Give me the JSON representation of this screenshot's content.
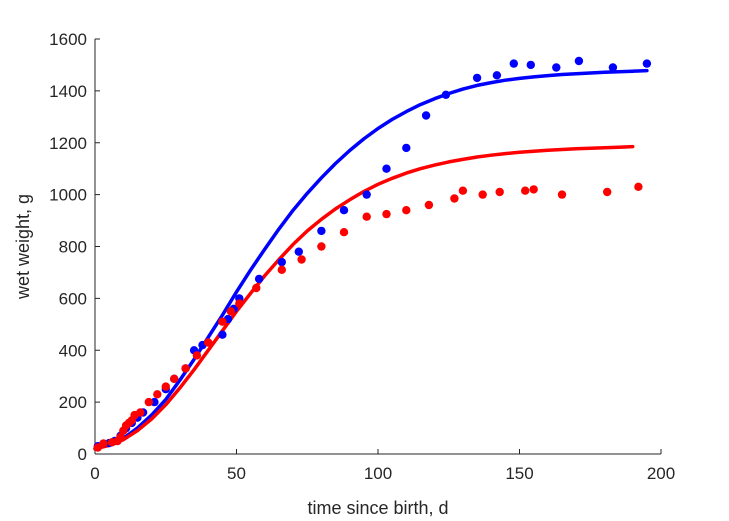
{
  "chart_data": {
    "type": "scatter",
    "title": "",
    "xlabel": "time since birth, d",
    "ylabel": "wet weight, g",
    "xlim": [
      0,
      200
    ],
    "ylim": [
      0,
      1600
    ],
    "xticks": [
      "0",
      "50",
      "100",
      "150",
      "200"
    ],
    "yticks": [
      "0",
      "200",
      "400",
      "600",
      "800",
      "1000",
      "1200",
      "1400",
      "1600"
    ],
    "grid": false,
    "legend": "none",
    "series": [
      {
        "kind": "points",
        "color": "#0000ff",
        "x": [
          1,
          3,
          5,
          7,
          9,
          11,
          13,
          15,
          17,
          21,
          25,
          28,
          32,
          35,
          38,
          45,
          47,
          49,
          51,
          58,
          66,
          72,
          80,
          88,
          96,
          103,
          110,
          117,
          124,
          135,
          142,
          148,
          154,
          163,
          171,
          183,
          195
        ],
        "y": [
          30,
          40,
          42,
          50,
          70,
          100,
          120,
          140,
          160,
          200,
          250,
          290,
          330,
          400,
          420,
          460,
          520,
          560,
          600,
          675,
          740,
          780,
          860,
          940,
          1000,
          1100,
          1180,
          1305,
          1385,
          1450,
          1460,
          1505,
          1500,
          1490,
          1515,
          1490,
          1505
        ]
      },
      {
        "kind": "points",
        "color": "#ff0000",
        "x": [
          1,
          3,
          6,
          8,
          9,
          10,
          11,
          12,
          13,
          14,
          16,
          19,
          22,
          25,
          28,
          32,
          36,
          40,
          45,
          48,
          51,
          57,
          66,
          73,
          80,
          88,
          96,
          103,
          110,
          118,
          127,
          130,
          137,
          143,
          152,
          155,
          165,
          181,
          192
        ],
        "y": [
          25,
          40,
          45,
          50,
          65,
          90,
          110,
          120,
          130,
          150,
          160,
          200,
          230,
          260,
          290,
          330,
          380,
          430,
          510,
          550,
          580,
          640,
          710,
          750,
          800,
          855,
          915,
          925,
          940,
          960,
          985,
          1015,
          1000,
          1010,
          1015,
          1020,
          1000,
          1010,
          1030
        ]
      },
      {
        "kind": "curve",
        "color": "#0000ff",
        "x": [
          0,
          5,
          10,
          15,
          20,
          25,
          30,
          35,
          40,
          45,
          50,
          55,
          60,
          65,
          70,
          75,
          80,
          85,
          90,
          95,
          100,
          105,
          110,
          115,
          120,
          125,
          130,
          135,
          140,
          145,
          150,
          155,
          160,
          165,
          170,
          175,
          180,
          185,
          190,
          195
        ],
        "y": [
          20,
          35,
          60,
          100,
          150,
          210,
          285,
          365,
          450,
          535,
          625,
          710,
          790,
          868,
          940,
          1005,
          1065,
          1120,
          1170,
          1215,
          1255,
          1290,
          1320,
          1347,
          1370,
          1390,
          1407,
          1421,
          1432,
          1441,
          1448,
          1454,
          1459,
          1463,
          1466,
          1469,
          1472,
          1474,
          1476,
          1478
        ]
      },
      {
        "kind": "curve",
        "color": "#ff0000",
        "x": [
          0,
          5,
          10,
          15,
          20,
          25,
          30,
          35,
          40,
          45,
          50,
          55,
          60,
          65,
          70,
          75,
          80,
          85,
          90,
          95,
          100,
          105,
          110,
          115,
          120,
          125,
          130,
          135,
          140,
          145,
          150,
          155,
          160,
          165,
          170,
          175,
          180,
          185,
          190
        ],
        "y": [
          20,
          33,
          55,
          90,
          135,
          190,
          255,
          325,
          400,
          475,
          550,
          620,
          688,
          750,
          808,
          860,
          905,
          945,
          980,
          1012,
          1040,
          1063,
          1083,
          1100,
          1114,
          1126,
          1136,
          1145,
          1152,
          1158,
          1163,
          1167,
          1171,
          1174,
          1177,
          1179,
          1181,
          1183,
          1185
        ]
      }
    ]
  }
}
